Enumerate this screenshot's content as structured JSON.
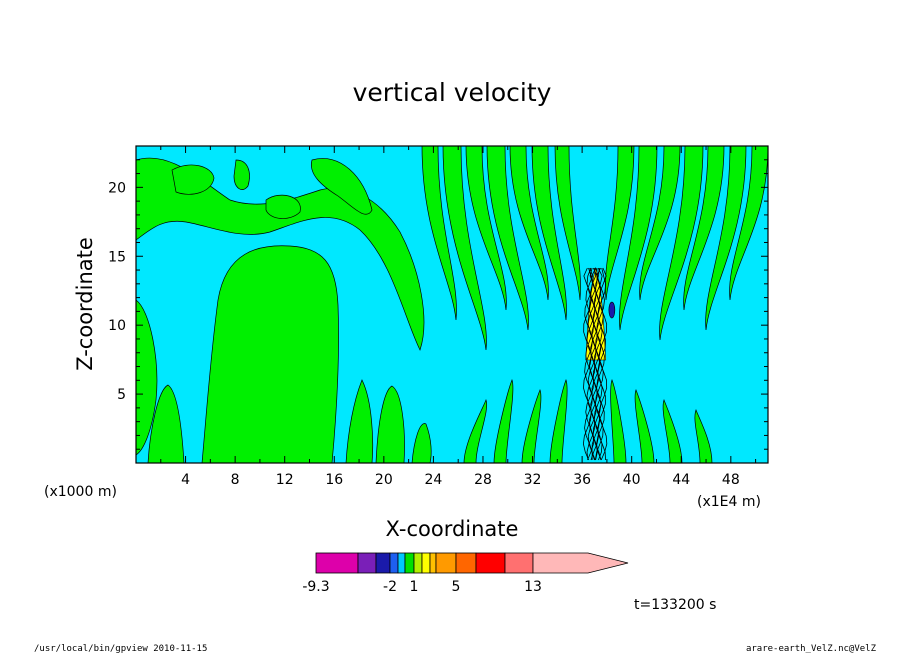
{
  "chart_data": {
    "type": "heatmap",
    "title": "vertical velocity",
    "xlabel": "X-coordinate",
    "ylabel": "Z-coordinate",
    "x_unit_left": "(x1000 m)",
    "x_unit_right": "(x1E4 m)",
    "xlim": [
      0,
      51
    ],
    "ylim": [
      0,
      23
    ],
    "x_ticks": [
      4,
      8,
      12,
      16,
      20,
      24,
      28,
      32,
      36,
      40,
      44,
      48
    ],
    "y_ticks": [
      5,
      10,
      15,
      20
    ],
    "colorbar": {
      "colors": [
        "#dd00aa",
        "#7a1fb8",
        "#1a1aaa",
        "#1e5ff0",
        "#00c8ff",
        "#00e000",
        "#b4f000",
        "#ffff00",
        "#ffc000",
        "#ff9a00",
        "#ff6600",
        "#ff0000",
        "#ff7070",
        "#ffb8b8"
      ],
      "tick_labels": [
        "-9.3",
        "-2",
        "1",
        "5",
        "13"
      ]
    },
    "field_colors": {
      "background": "#00e8ff",
      "positive": "#00f000"
    },
    "time_label": "t=133200 s"
  },
  "footer": {
    "left": "/usr/local/bin/gpview   2010-11-15",
    "right": "arare-earth_VelZ.nc@VelZ"
  }
}
